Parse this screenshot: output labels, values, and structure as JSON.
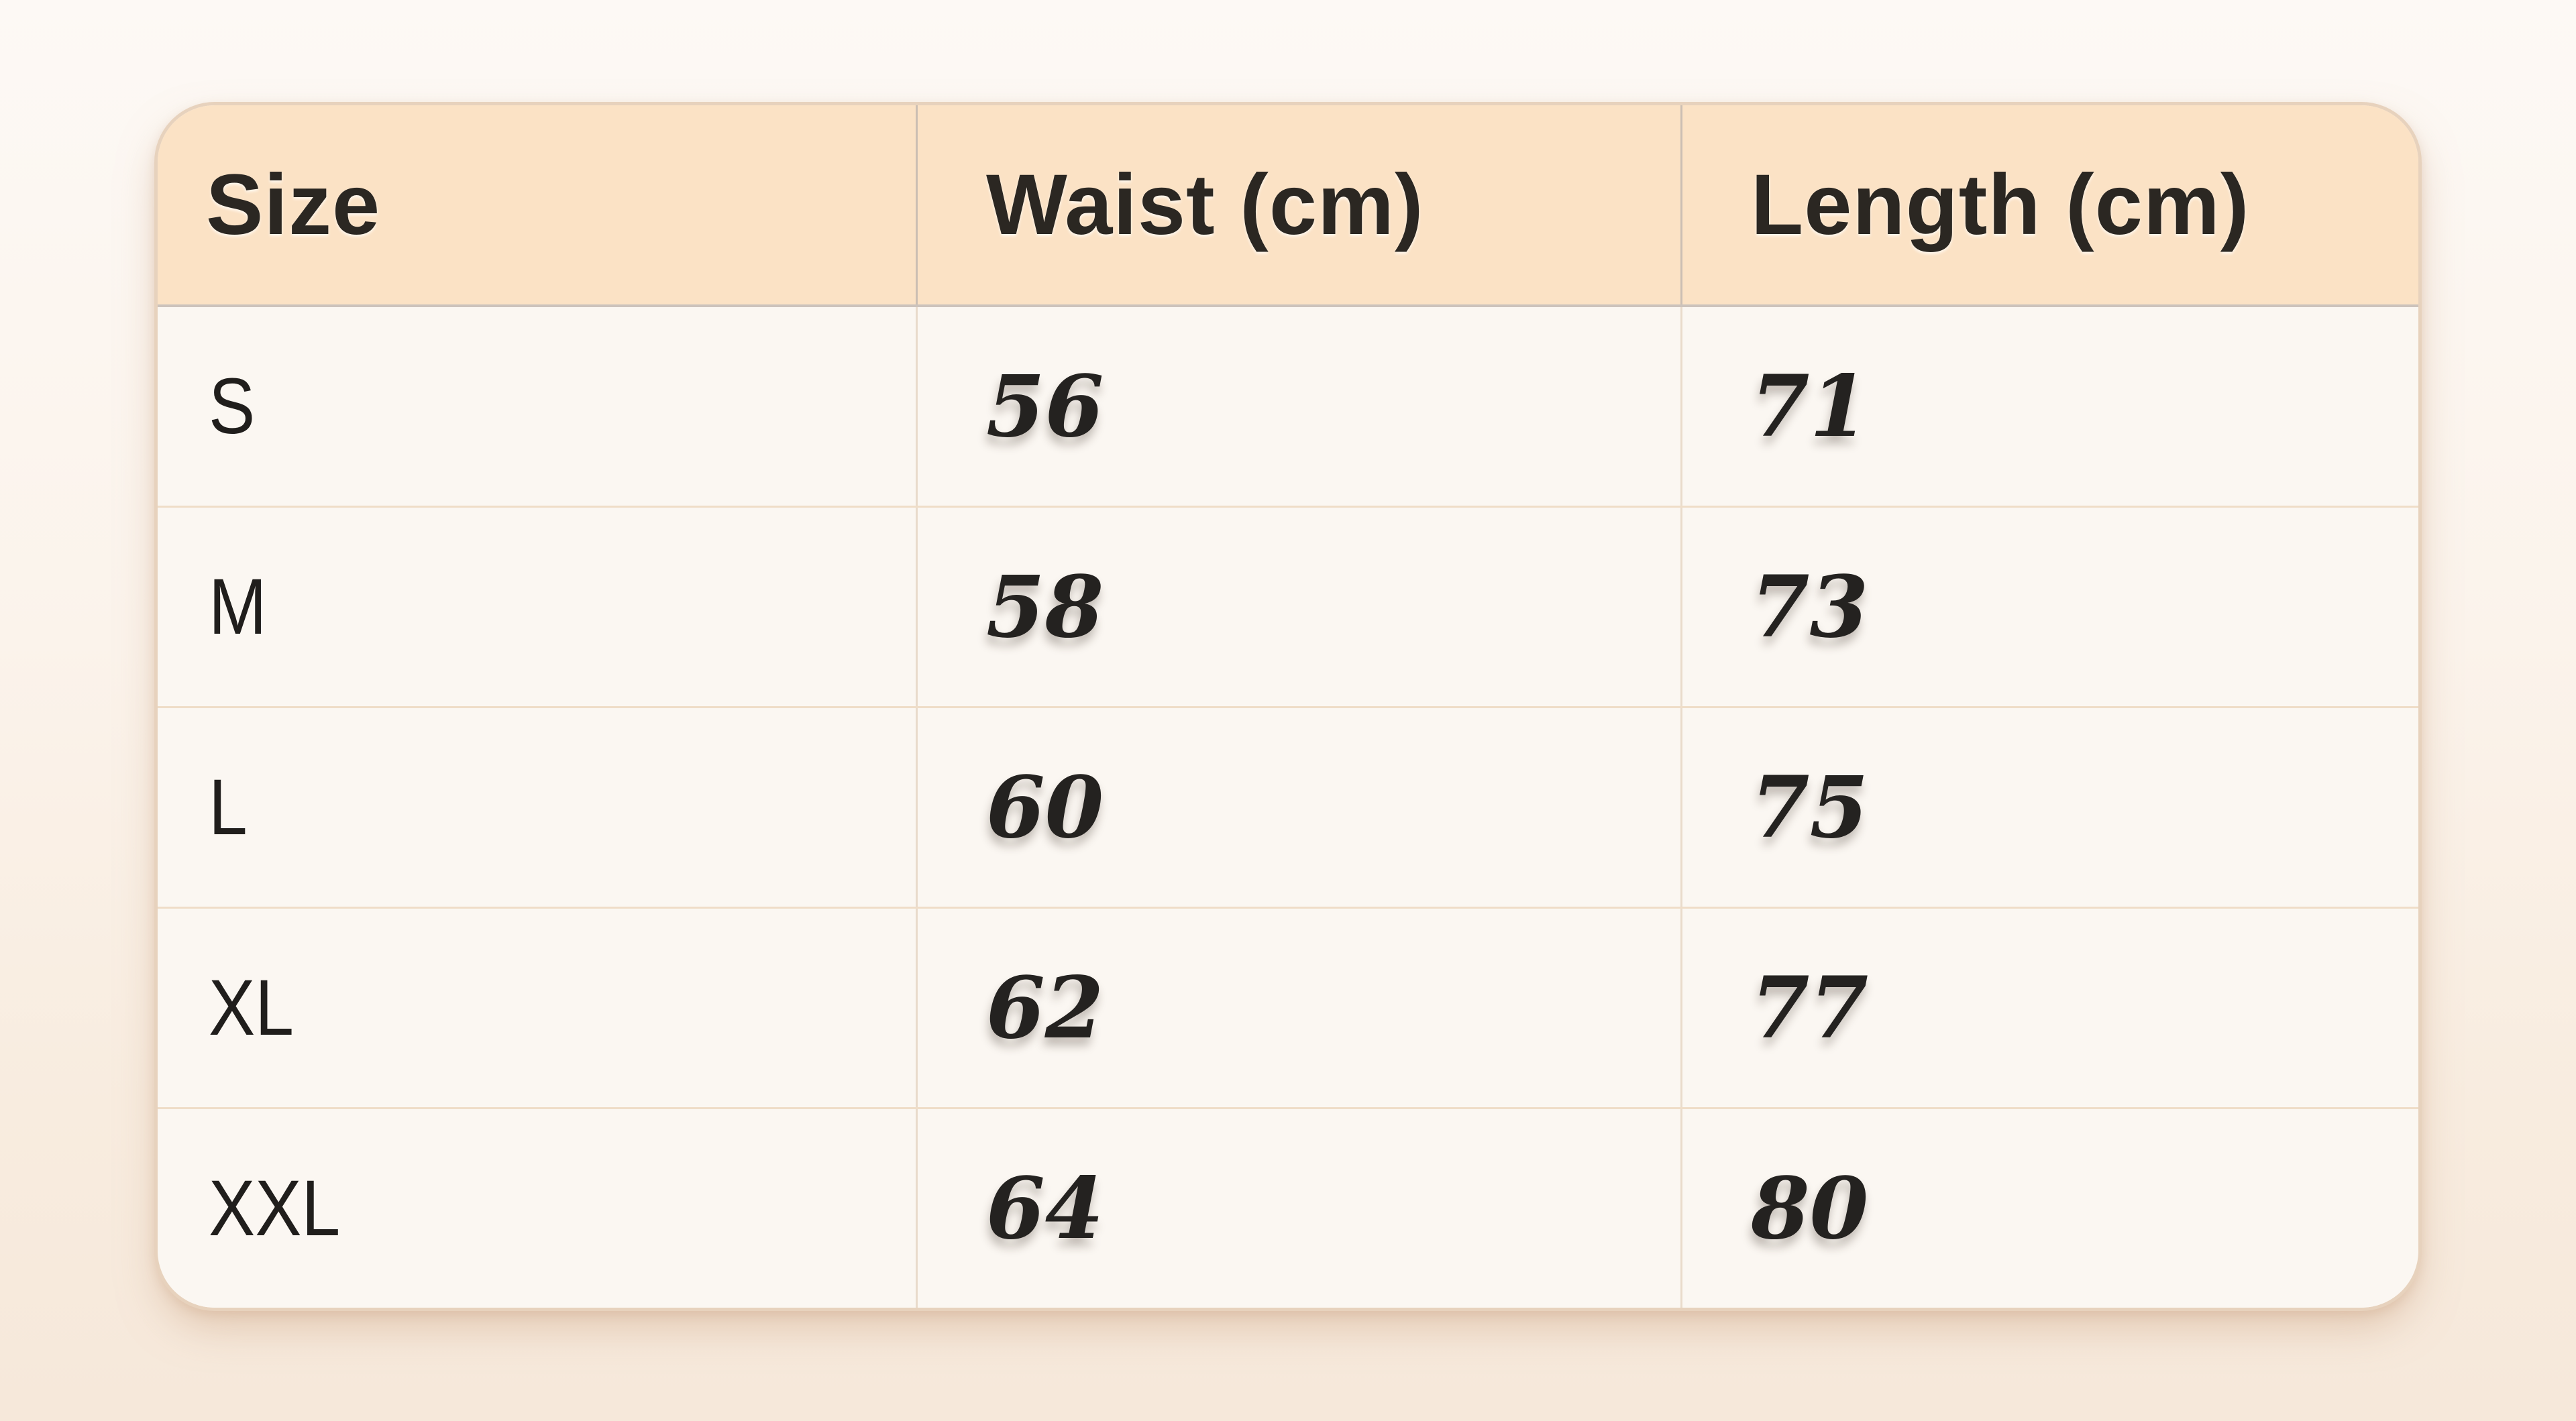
{
  "table": {
    "columns": [
      {
        "label": "Size"
      },
      {
        "label": "Waist (cm)"
      },
      {
        "label": "Length (cm)"
      }
    ],
    "rows": [
      {
        "size": "S",
        "waist": "56",
        "length": "71"
      },
      {
        "size": "M",
        "waist": "58",
        "length": "73"
      },
      {
        "size": "L",
        "waist": "60",
        "length": "75"
      },
      {
        "size": "XL",
        "waist": "62",
        "length": "77"
      },
      {
        "size": "XXL",
        "waist": "64",
        "length": "80"
      }
    ]
  },
  "colors": {
    "page_background_top": "#fdf9f5",
    "page_background_bottom": "#f6e8da",
    "card_background": "#fbf7f2",
    "header_background": "#fbe2c5",
    "card_border": "#e7d2bd",
    "row_divider": "#efddc8",
    "column_divider": "#e9dbcb",
    "text": "#242220"
  },
  "chart_data": {
    "type": "table",
    "columns": [
      "Size",
      "Waist (cm)",
      "Length (cm)"
    ],
    "rows": [
      [
        "S",
        56,
        71
      ],
      [
        "M",
        58,
        73
      ],
      [
        "L",
        60,
        75
      ],
      [
        "XL",
        62,
        77
      ],
      [
        "XXL",
        64,
        80
      ]
    ],
    "title": "",
    "legend": "none",
    "grid": "on"
  }
}
